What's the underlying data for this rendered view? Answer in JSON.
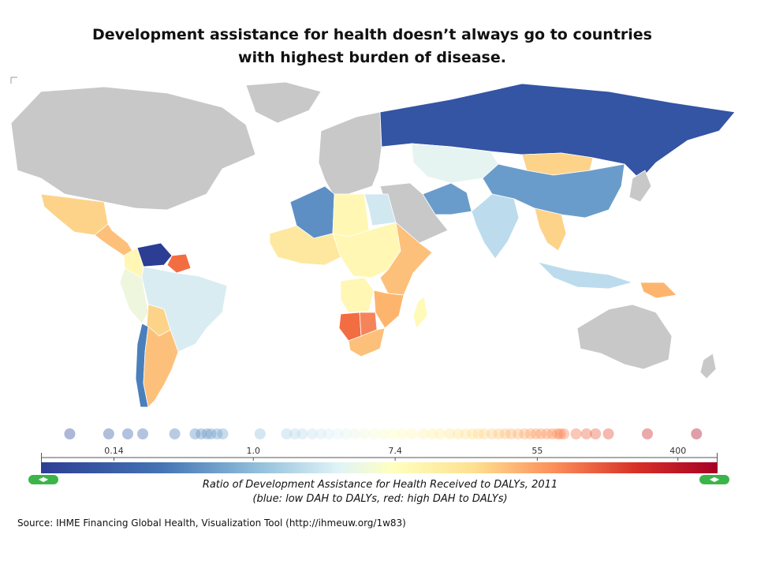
{
  "title": {
    "line1": "Development assistance for health doesn’t always go to countries",
    "line2": "with highest burden of disease."
  },
  "legend": {
    "tick_labels": [
      "0.14",
      "1.0",
      "7.4",
      "55",
      "400"
    ],
    "color_low": "#2c3d94",
    "color_mid": "#ffffbf",
    "color_high": "#a50026",
    "handle_left_icon": "left-right-arrow-icon",
    "handle_right_icon": "left-right-arrow-icon"
  },
  "caption": {
    "line1": "Ratio of Development Assistance for Health Received to DALYs, 2011",
    "line2": "(blue: low DAH to DALYs, red: high DAH to DALYs)"
  },
  "source": "Source: IHME Financing Global Health, Visualization Tool (http://ihmeuw.org/1w83)",
  "map": {
    "no_data_color": "#c8c8c8",
    "regions": [
      {
        "name": "North America",
        "color": "#c8c8c8"
      },
      {
        "name": "Greenland",
        "color": "#c8c8c8"
      },
      {
        "name": "Mexico",
        "color": "#fdd38a"
      },
      {
        "name": "Central America",
        "color": "#fdc07a"
      },
      {
        "name": "Venezuela",
        "color": "#2c3d94"
      },
      {
        "name": "Guyana",
        "color": "#f36d43"
      },
      {
        "name": "Colombia",
        "color": "#fff7b3"
      },
      {
        "name": "Peru",
        "color": "#eef6dd"
      },
      {
        "name": "Brazil",
        "color": "#d9ecf2"
      },
      {
        "name": "Bolivia",
        "color": "#fdd38a"
      },
      {
        "name": "Chile",
        "color": "#4a7fbb"
      },
      {
        "name": "Argentina",
        "color": "#fdc07a"
      },
      {
        "name": "Europe",
        "color": "#c8c8c8"
      },
      {
        "name": "Russia",
        "color": "#3454a4"
      },
      {
        "name": "Kazakhstan",
        "color": "#e6f4f1"
      },
      {
        "name": "Mongolia",
        "color": "#fdd38a"
      },
      {
        "name": "China",
        "color": "#6a9ccb"
      },
      {
        "name": "Middle East",
        "color": "#c8c8c8"
      },
      {
        "name": "Iran",
        "color": "#6a9ccb"
      },
      {
        "name": "India",
        "color": "#bcdced"
      },
      {
        "name": "Southeast Asia",
        "color": "#fdd38a"
      },
      {
        "name": "Indonesia",
        "color": "#bcdced"
      },
      {
        "name": "Papua New Guinea",
        "color": "#fdb56d"
      },
      {
        "name": "Algeria",
        "color": "#5d8fc4"
      },
      {
        "name": "Libya",
        "color": "#fff7b3"
      },
      {
        "name": "Egypt",
        "color": "#d2e8f0"
      },
      {
        "name": "West Africa",
        "color": "#fee8a0"
      },
      {
        "name": "Central Africa",
        "color": "#fff7b3"
      },
      {
        "name": "East Africa",
        "color": "#fdc07a"
      },
      {
        "name": "Angola",
        "color": "#fff7b3"
      },
      {
        "name": "Namibia",
        "color": "#f36d43"
      },
      {
        "name": "Botswana",
        "color": "#f6845a"
      },
      {
        "name": "Mozambique",
        "color": "#fdb56d"
      },
      {
        "name": "South Africa",
        "color": "#fdc07a"
      },
      {
        "name": "Madagascar",
        "color": "#fffab8"
      },
      {
        "name": "Australia",
        "color": "#c8c8c8"
      },
      {
        "name": "Japan",
        "color": "#c8c8c8"
      }
    ]
  },
  "chart_data": {
    "type": "scatter",
    "title": "",
    "xlabel": "Ratio of Development Assistance for Health Received to DALYs, 2011",
    "scale": "log",
    "xlim": [
      0.05,
      700
    ],
    "tick_labels": [
      "0.14",
      "1.0",
      "7.4",
      "55",
      "400"
    ],
    "tick_values": [
      0.14,
      1.0,
      7.4,
      55,
      400
    ],
    "points": [
      0.075,
      0.13,
      0.17,
      0.21,
      0.33,
      0.44,
      0.48,
      0.52,
      0.55,
      0.6,
      0.65,
      1.1,
      1.6,
      1.8,
      2.0,
      2.3,
      2.6,
      2.9,
      3.3,
      3.7,
      4.2,
      4.8,
      5.5,
      6.3,
      7.2,
      8.2,
      9.4,
      11,
      12.5,
      14,
      16,
      18,
      20,
      22,
      24,
      26,
      29,
      32,
      35,
      38,
      42,
      46,
      50,
      54,
      58,
      63,
      68,
      73,
      76,
      80,
      95,
      110,
      125,
      150,
      260,
      520
    ]
  }
}
